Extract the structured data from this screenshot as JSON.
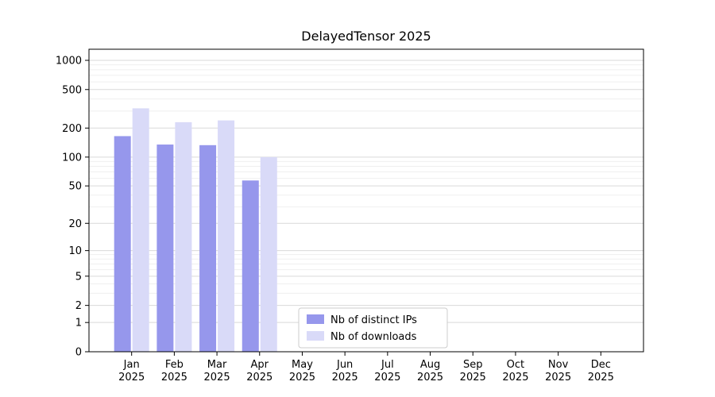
{
  "chart_data": {
    "type": "bar",
    "title": "DelayedTensor 2025",
    "x_categories": [
      "Jan",
      "Feb",
      "Mar",
      "Apr",
      "May",
      "Jun",
      "Jul",
      "Aug",
      "Sep",
      "Oct",
      "Nov",
      "Dec"
    ],
    "x_year": "2025",
    "y_scale": "log1p",
    "y_ticks": [
      0,
      1,
      2,
      5,
      10,
      20,
      50,
      100,
      200,
      500,
      1000
    ],
    "y_max": 1000,
    "grid": true,
    "legend_position": "lower-center-inside",
    "series": [
      {
        "name": "Nb of distinct IPs",
        "color": "#9697ec",
        "values": [
          165,
          135,
          133,
          57,
          0,
          0,
          0,
          0,
          0,
          0,
          0,
          0
        ]
      },
      {
        "name": "Nb of downloads",
        "color": "#d9daf8",
        "values": [
          320,
          230,
          240,
          100,
          0,
          0,
          0,
          0,
          0,
          0,
          0,
          0
        ]
      }
    ]
  },
  "colors": {
    "major_grid": "#d9d9d9",
    "minor_grid": "#efefef",
    "axis": "#000000",
    "legend_border": "#cccccc",
    "legend_bg": "#ffffff"
  }
}
